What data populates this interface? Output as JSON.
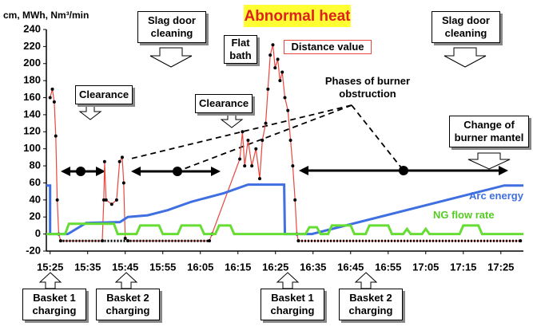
{
  "chart_data": {
    "type": "line",
    "title": "Abnormal heat",
    "y_label": "cm, MWh, Nm³/min",
    "ylim": [
      -20,
      240
    ],
    "yticks": [
      -20,
      0,
      20,
      40,
      60,
      80,
      100,
      120,
      140,
      160,
      180,
      200,
      220,
      240
    ],
    "xlim": [
      924,
      1051
    ],
    "xticks": [
      {
        "value": 925,
        "label": "15:25"
      },
      {
        "value": 935,
        "label": "15:35"
      },
      {
        "value": 945,
        "label": "15:45"
      },
      {
        "value": 955,
        "label": "15:55"
      },
      {
        "value": 965,
        "label": "16:05"
      },
      {
        "value": 975,
        "label": "16:15"
      },
      {
        "value": 985,
        "label": "16:25"
      },
      {
        "value": 995,
        "label": "16:35"
      },
      {
        "value": 1005,
        "label": "16:45"
      },
      {
        "value": 1015,
        "label": "16:55"
      },
      {
        "value": 1025,
        "label": "17:05"
      },
      {
        "value": 1035,
        "label": "17:15"
      },
      {
        "value": 1045,
        "label": "17:25"
      }
    ],
    "series": [
      {
        "name": "Distance value",
        "color": "#e8473f",
        "x": [
          925.0,
          925.6,
          926.1,
          926.5,
          926.9,
          927.3,
          927.8,
          938.9,
          939.3,
          939.5,
          939.9,
          941.4,
          942.7,
          943.5,
          944.2,
          944.6,
          945.0,
          945.7,
          967.4,
          968.1,
          975.5,
          976.2,
          976.8,
          977.7,
          978.7,
          979.8,
          980.8,
          981.5,
          982.4,
          983.0,
          983.6,
          984.3,
          984.9,
          985.6,
          986.2,
          986.8,
          987.5,
          988.3,
          989.0,
          989.6,
          990.2,
          990.7,
          991.1,
          1050.2
        ],
        "values": [
          160,
          170,
          155,
          115,
          40,
          0,
          -8,
          -8,
          40,
          85,
          40,
          35,
          40,
          85,
          90,
          60,
          -5,
          -8,
          -8,
          0,
          88,
          120,
          80,
          110,
          80,
          100,
          65,
          110,
          130,
          170,
          210,
          222,
          195,
          205,
          180,
          190,
          160,
          145,
          110,
          80,
          40,
          0,
          -8,
          -8
        ]
      },
      {
        "color": "#000000",
        "x": [
          927.5,
          967.5,
          968,
          991,
          1050
        ],
        "values": [
          -8,
          -8,
          null,
          -8,
          -8
        ]
      },
      {
        "name": "Arc energy",
        "color": "#3f6fe0",
        "x": [
          924,
          925,
          925,
          929.7,
          934.6,
          943.6,
          945.7,
          951,
          956.3,
          962.7,
          971.3,
          977.7,
          987.3,
          987.5,
          994.7,
          1045.9,
          1051
        ],
        "values": [
          57,
          57,
          0,
          0,
          13,
          14,
          20,
          22,
          28,
          38,
          48,
          58,
          58,
          0,
          0,
          57,
          57
        ]
      },
      {
        "name": "NG flow rate",
        "color": "#66dd33",
        "x": [
          924,
          929,
          930,
          942,
          943,
          948,
          949,
          954,
          955,
          959,
          960,
          965,
          966,
          969,
          970,
          973,
          974,
          993,
          994,
          996,
          997,
          999,
          1000,
          1005,
          1006,
          1009,
          1010,
          1015,
          1016,
          1019,
          1020,
          1021,
          1024,
          1025,
          1026,
          1034,
          1035,
          1039,
          1040,
          1051
        ],
        "values": [
          0,
          0,
          12,
          12,
          0,
          0,
          10,
          10,
          0,
          0,
          10,
          10,
          0,
          0,
          10,
          10,
          0,
          0,
          8,
          8,
          0,
          0,
          10,
          10,
          0,
          0,
          10,
          10,
          0,
          0,
          6,
          0,
          0,
          6,
          0,
          0,
          10,
          10,
          0,
          0
        ]
      }
    ]
  },
  "annotations": {
    "slag_door_1": "Slag door\ncleaning",
    "slag_door_2": "Slag door\ncleaning",
    "flat_bath": "Flat\nbath",
    "clearance_1": "Clearance",
    "clearance_2": "Clearance",
    "phases": "Phases of burner\nobstruction",
    "mantel": "Change of\nburner mantel",
    "basket_1a": "Basket 1\ncharging",
    "basket_2a": "Basket 2\ncharging",
    "basket_1b": "Basket 1\ncharging",
    "basket_2b": "Basket 2\ncharging"
  }
}
